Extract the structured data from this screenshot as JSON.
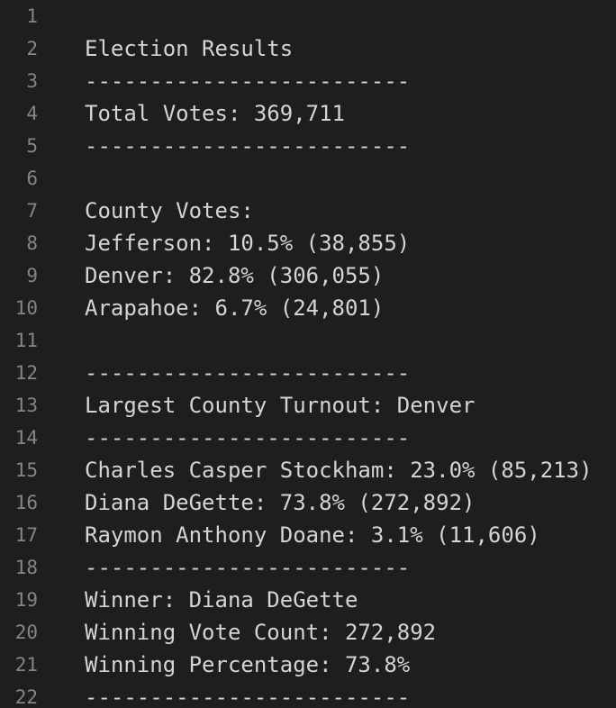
{
  "editor": {
    "lines": [
      {
        "number": "1",
        "text": ""
      },
      {
        "number": "2",
        "text": "Election Results"
      },
      {
        "number": "3",
        "text": "-------------------------"
      },
      {
        "number": "4",
        "text": "Total Votes: 369,711"
      },
      {
        "number": "5",
        "text": "-------------------------"
      },
      {
        "number": "6",
        "text": ""
      },
      {
        "number": "7",
        "text": "County Votes:"
      },
      {
        "number": "8",
        "text": "Jefferson: 10.5% (38,855)"
      },
      {
        "number": "9",
        "text": "Denver: 82.8% (306,055)"
      },
      {
        "number": "10",
        "text": "Arapahoe: 6.7% (24,801)"
      },
      {
        "number": "11",
        "text": ""
      },
      {
        "number": "12",
        "text": "-------------------------"
      },
      {
        "number": "13",
        "text": "Largest County Turnout: Denver"
      },
      {
        "number": "14",
        "text": "-------------------------"
      },
      {
        "number": "15",
        "text": "Charles Casper Stockham: 23.0% (85,213)"
      },
      {
        "number": "16",
        "text": "Diana DeGette: 73.8% (272,892)"
      },
      {
        "number": "17",
        "text": "Raymon Anthony Doane: 3.1% (11,606)"
      },
      {
        "number": "18",
        "text": "-------------------------"
      },
      {
        "number": "19",
        "text": "Winner: Diana DeGette"
      },
      {
        "number": "20",
        "text": "Winning Vote Count: 272,892"
      },
      {
        "number": "21",
        "text": "Winning Percentage: 73.8%"
      },
      {
        "number": "22",
        "text": "-------------------------"
      }
    ]
  }
}
